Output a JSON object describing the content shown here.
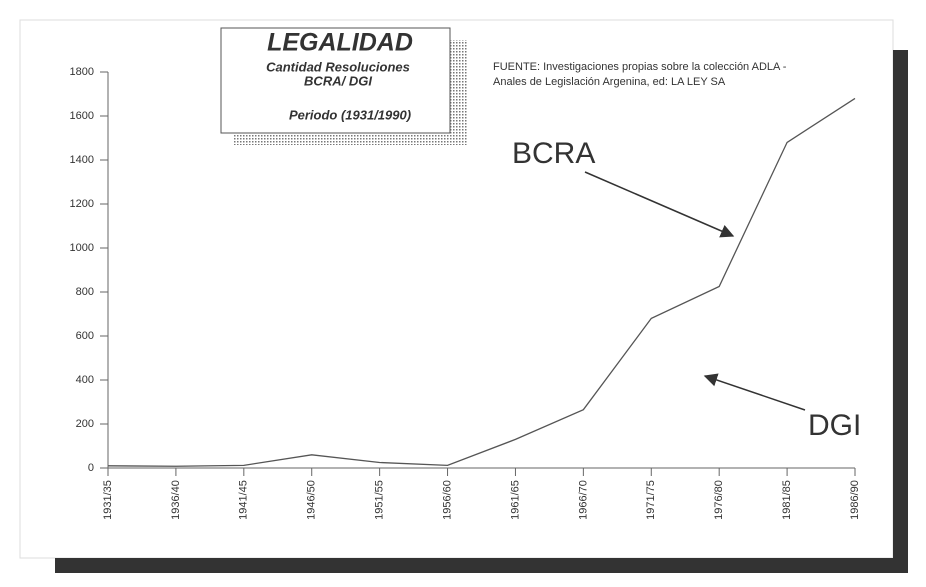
{
  "chart_data": {
    "type": "line",
    "title": "LEGALIDAD",
    "subtitle": [
      "Cantidad Resoluciones",
      "BCRA/ DGI",
      "Periodo (1931/1990)"
    ],
    "source": [
      "FUENTE: Investigaciones propias sobre la colección ADLA -",
      "Anales de Legislación Argenina, ed: LA LEY SA"
    ],
    "annotations": [
      "BCRA",
      "DGI"
    ],
    "categories": [
      "1931/35",
      "1936/40",
      "1941/45",
      "1946/50",
      "1951/55",
      "1956/60",
      "1961/65",
      "1966/70",
      "1971/75",
      "1976/80",
      "1981/85",
      "1986/90"
    ],
    "values": [
      10,
      8,
      12,
      60,
      25,
      12,
      130,
      265,
      680,
      825,
      1480,
      1680
    ],
    "color": "#555555",
    "ylim": [
      0,
      1800
    ],
    "yticks": [
      0,
      200,
      400,
      600,
      800,
      1000,
      1200,
      1400,
      1600,
      1800
    ]
  }
}
